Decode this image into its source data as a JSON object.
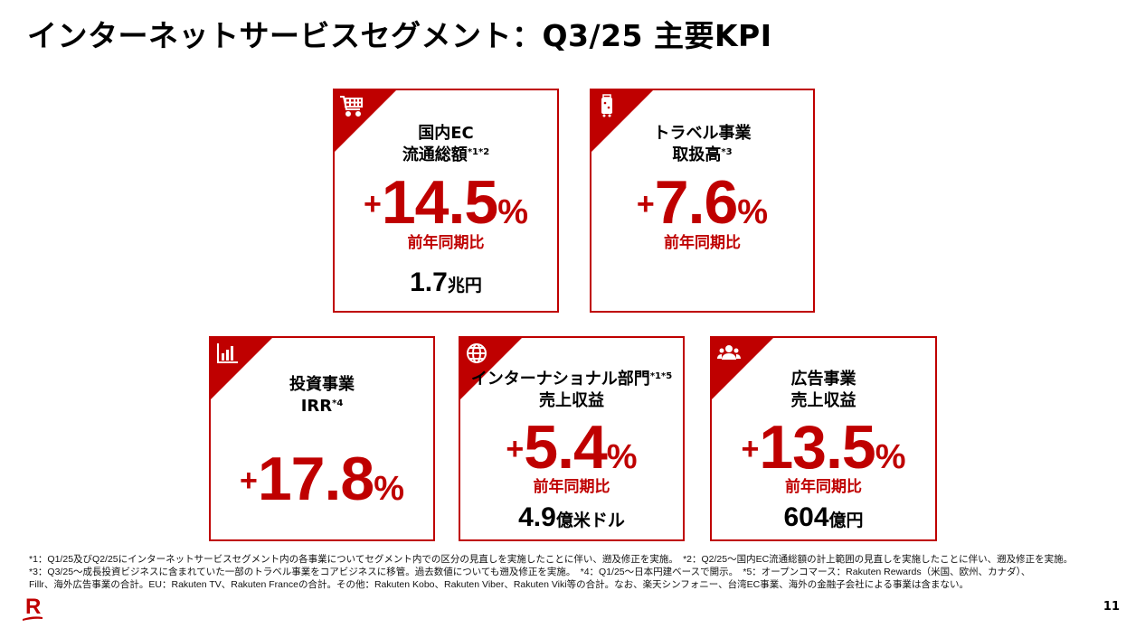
{
  "title": "インターネットサービスセグメント：Q3/25 主要KPI",
  "accent_color": "#bf0000",
  "cards": [
    {
      "icon": "shopping-cart-icon",
      "title_line1": "国内EC",
      "title_line2": "流通総額",
      "title_sup": "*1*2",
      "plus": "+",
      "value": "14.5",
      "pct": "%",
      "sub": "前年同期比",
      "amount": "1.7",
      "amount_unit": "兆円"
    },
    {
      "icon": "suitcase-icon",
      "title_line1": "トラベル事業",
      "title_line2": "取扱高",
      "title_sup": "*3",
      "plus": "+",
      "value": "7.6",
      "pct": "%",
      "sub": "前年同期比"
    },
    {
      "icon": "bar-chart-icon",
      "title_line1": "投資事業",
      "title_line2": "IRR",
      "title_sup": "*4",
      "plus": "+",
      "value": "17.8",
      "pct": "%"
    },
    {
      "icon": "globe-icon",
      "title_line1": "インターナショナル部門",
      "title_sup1": "*1*5",
      "title_line2": "売上収益",
      "plus": "+",
      "value": "5.4",
      "pct": "%",
      "sub": "前年同期比",
      "amount": "4.9",
      "amount_unit": "億米ドル"
    },
    {
      "icon": "people-icon",
      "title_line1": "広告事業",
      "title_line2": "売上収益",
      "plus": "+",
      "value": "13.5",
      "pct": "%",
      "sub": "前年同期比",
      "amount": "604",
      "amount_unit": "億円"
    }
  ],
  "notes": [
    "*1：Q1/25及びQ2/25にインターネットサービスセグメント内の各事業についてセグメント内での区分の見直しを実施したことに伴い、遡及修正を実施。　*2：Q2/25～国内EC流通総額の計上範囲の見直しを実施したことに伴い、遡及修正を実施。",
    "*3：Q3/25～成長投資ビジネスに含まれていた一部のトラベル事業をコアビジネスに移管。過去数値についても遡及修正を実施。　*4：Q1/25～日本円建ベースで開示。　*5：オープンコマース：Rakuten Rewards（米国、欧州、カナダ）、",
    "Fillr、海外広告事業の合計。EU：Rakuten TV、Rakuten Franceの合計。その他：Rakuten Kobo、Rakuten Viber、Rakuten Viki等の合計。なお、楽天シンフォニー、台湾EC事業、海外の金融子会社による事業は含まない。"
  ],
  "page_number": "11",
  "logo": "R"
}
